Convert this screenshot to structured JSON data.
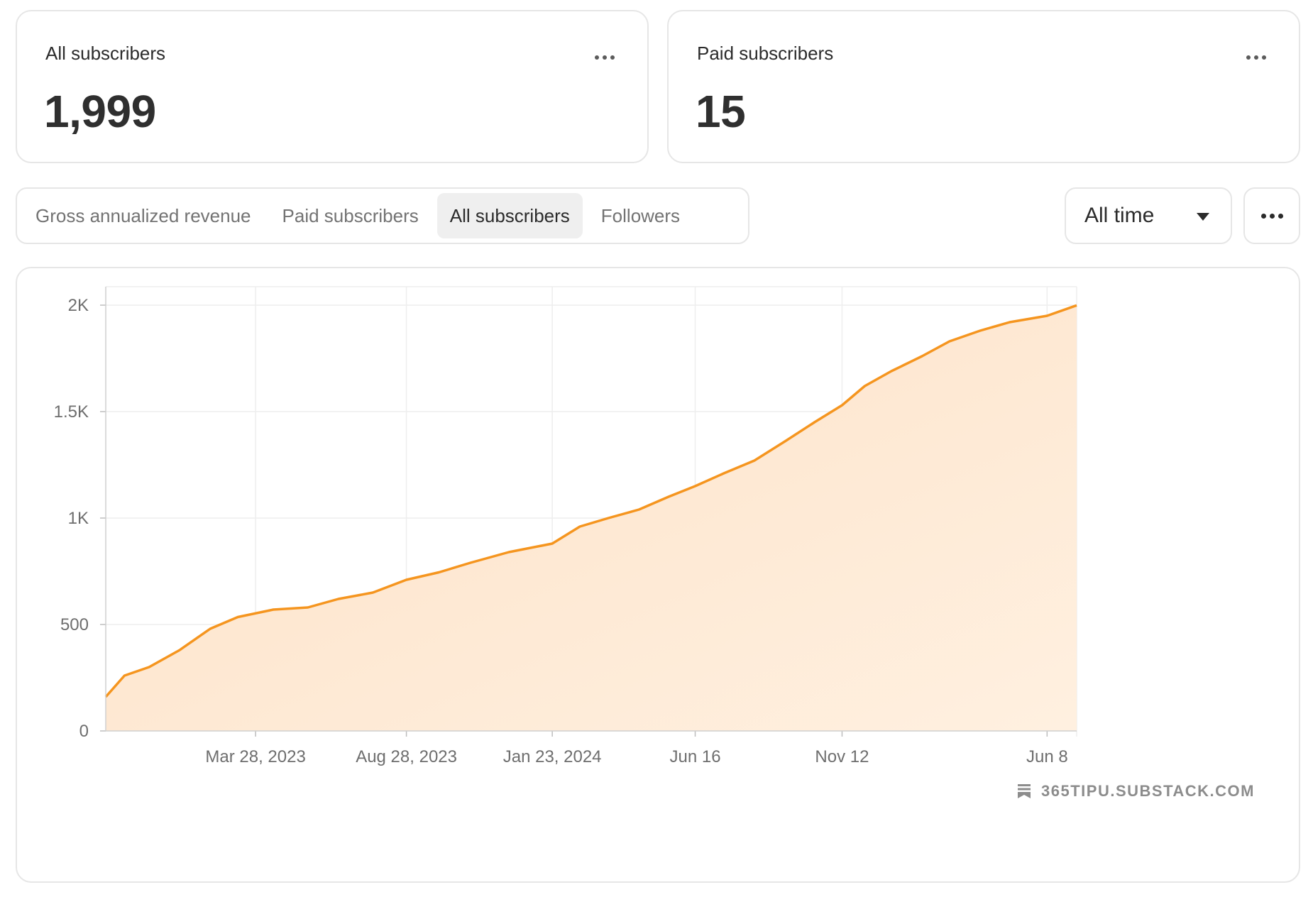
{
  "stats": [
    {
      "label": "All subscribers",
      "value": "1,999"
    },
    {
      "label": "Paid subscribers",
      "value": "15"
    }
  ],
  "tabs": [
    {
      "label": "Gross annualized revenue",
      "active": false
    },
    {
      "label": "Paid subscribers",
      "active": false
    },
    {
      "label": "All subscribers",
      "active": true
    },
    {
      "label": "Followers",
      "active": false
    }
  ],
  "range_select": {
    "value": "All time"
  },
  "watermark": "365TIPU.SUBSTACK.COM",
  "colors": {
    "line": "#f5951f",
    "fill_top": "#fde1c6",
    "fill_bottom": "#fff0e0",
    "grid": "#eeeeee"
  },
  "chart_data": {
    "type": "area",
    "x_type": "date",
    "x": [
      "2022-10-27",
      "2022-11-15",
      "2022-12-10",
      "2023-01-10",
      "2023-02-10",
      "2023-03-10",
      "2023-04-15",
      "2023-05-20",
      "2023-06-20",
      "2023-07-25",
      "2023-08-28",
      "2023-09-30",
      "2023-11-01",
      "2023-12-10",
      "2024-01-23",
      "2024-02-20",
      "2024-03-20",
      "2024-04-20",
      "2024-05-20",
      "2024-06-16",
      "2024-07-15",
      "2024-08-15",
      "2024-09-15",
      "2024-10-15",
      "2024-11-12",
      "2024-12-05",
      "2025-01-01",
      "2025-02-01",
      "2025-03-01",
      "2025-04-01",
      "2025-05-01",
      "2025-06-08",
      "2025-07-08"
    ],
    "values": [
      160,
      260,
      300,
      380,
      480,
      535,
      570,
      580,
      620,
      650,
      710,
      745,
      790,
      840,
      880,
      960,
      1000,
      1040,
      1100,
      1150,
      1210,
      1270,
      1360,
      1450,
      1530,
      1620,
      1690,
      1760,
      1830,
      1880,
      1920,
      1950,
      1999
    ],
    "ylim": [
      0,
      2000
    ],
    "y_ticks": [
      {
        "value": 0,
        "label": "0"
      },
      {
        "value": 500,
        "label": "500"
      },
      {
        "value": 1000,
        "label": "1K"
      },
      {
        "value": 1500,
        "label": "1.5K"
      },
      {
        "value": 2000,
        "label": "2K"
      }
    ],
    "x_ticks": [
      {
        "date": "2023-03-28",
        "label": "Mar 28, 2023"
      },
      {
        "date": "2023-08-28",
        "label": "Aug 28, 2023"
      },
      {
        "date": "2024-01-23",
        "label": "Jan 23, 2024"
      },
      {
        "date": "2024-06-16",
        "label": "Jun 16"
      },
      {
        "date": "2024-11-12",
        "label": "Nov 12"
      },
      {
        "date": "2025-06-08",
        "label": "Jun 8"
      }
    ],
    "grid": true,
    "legend": "none"
  }
}
